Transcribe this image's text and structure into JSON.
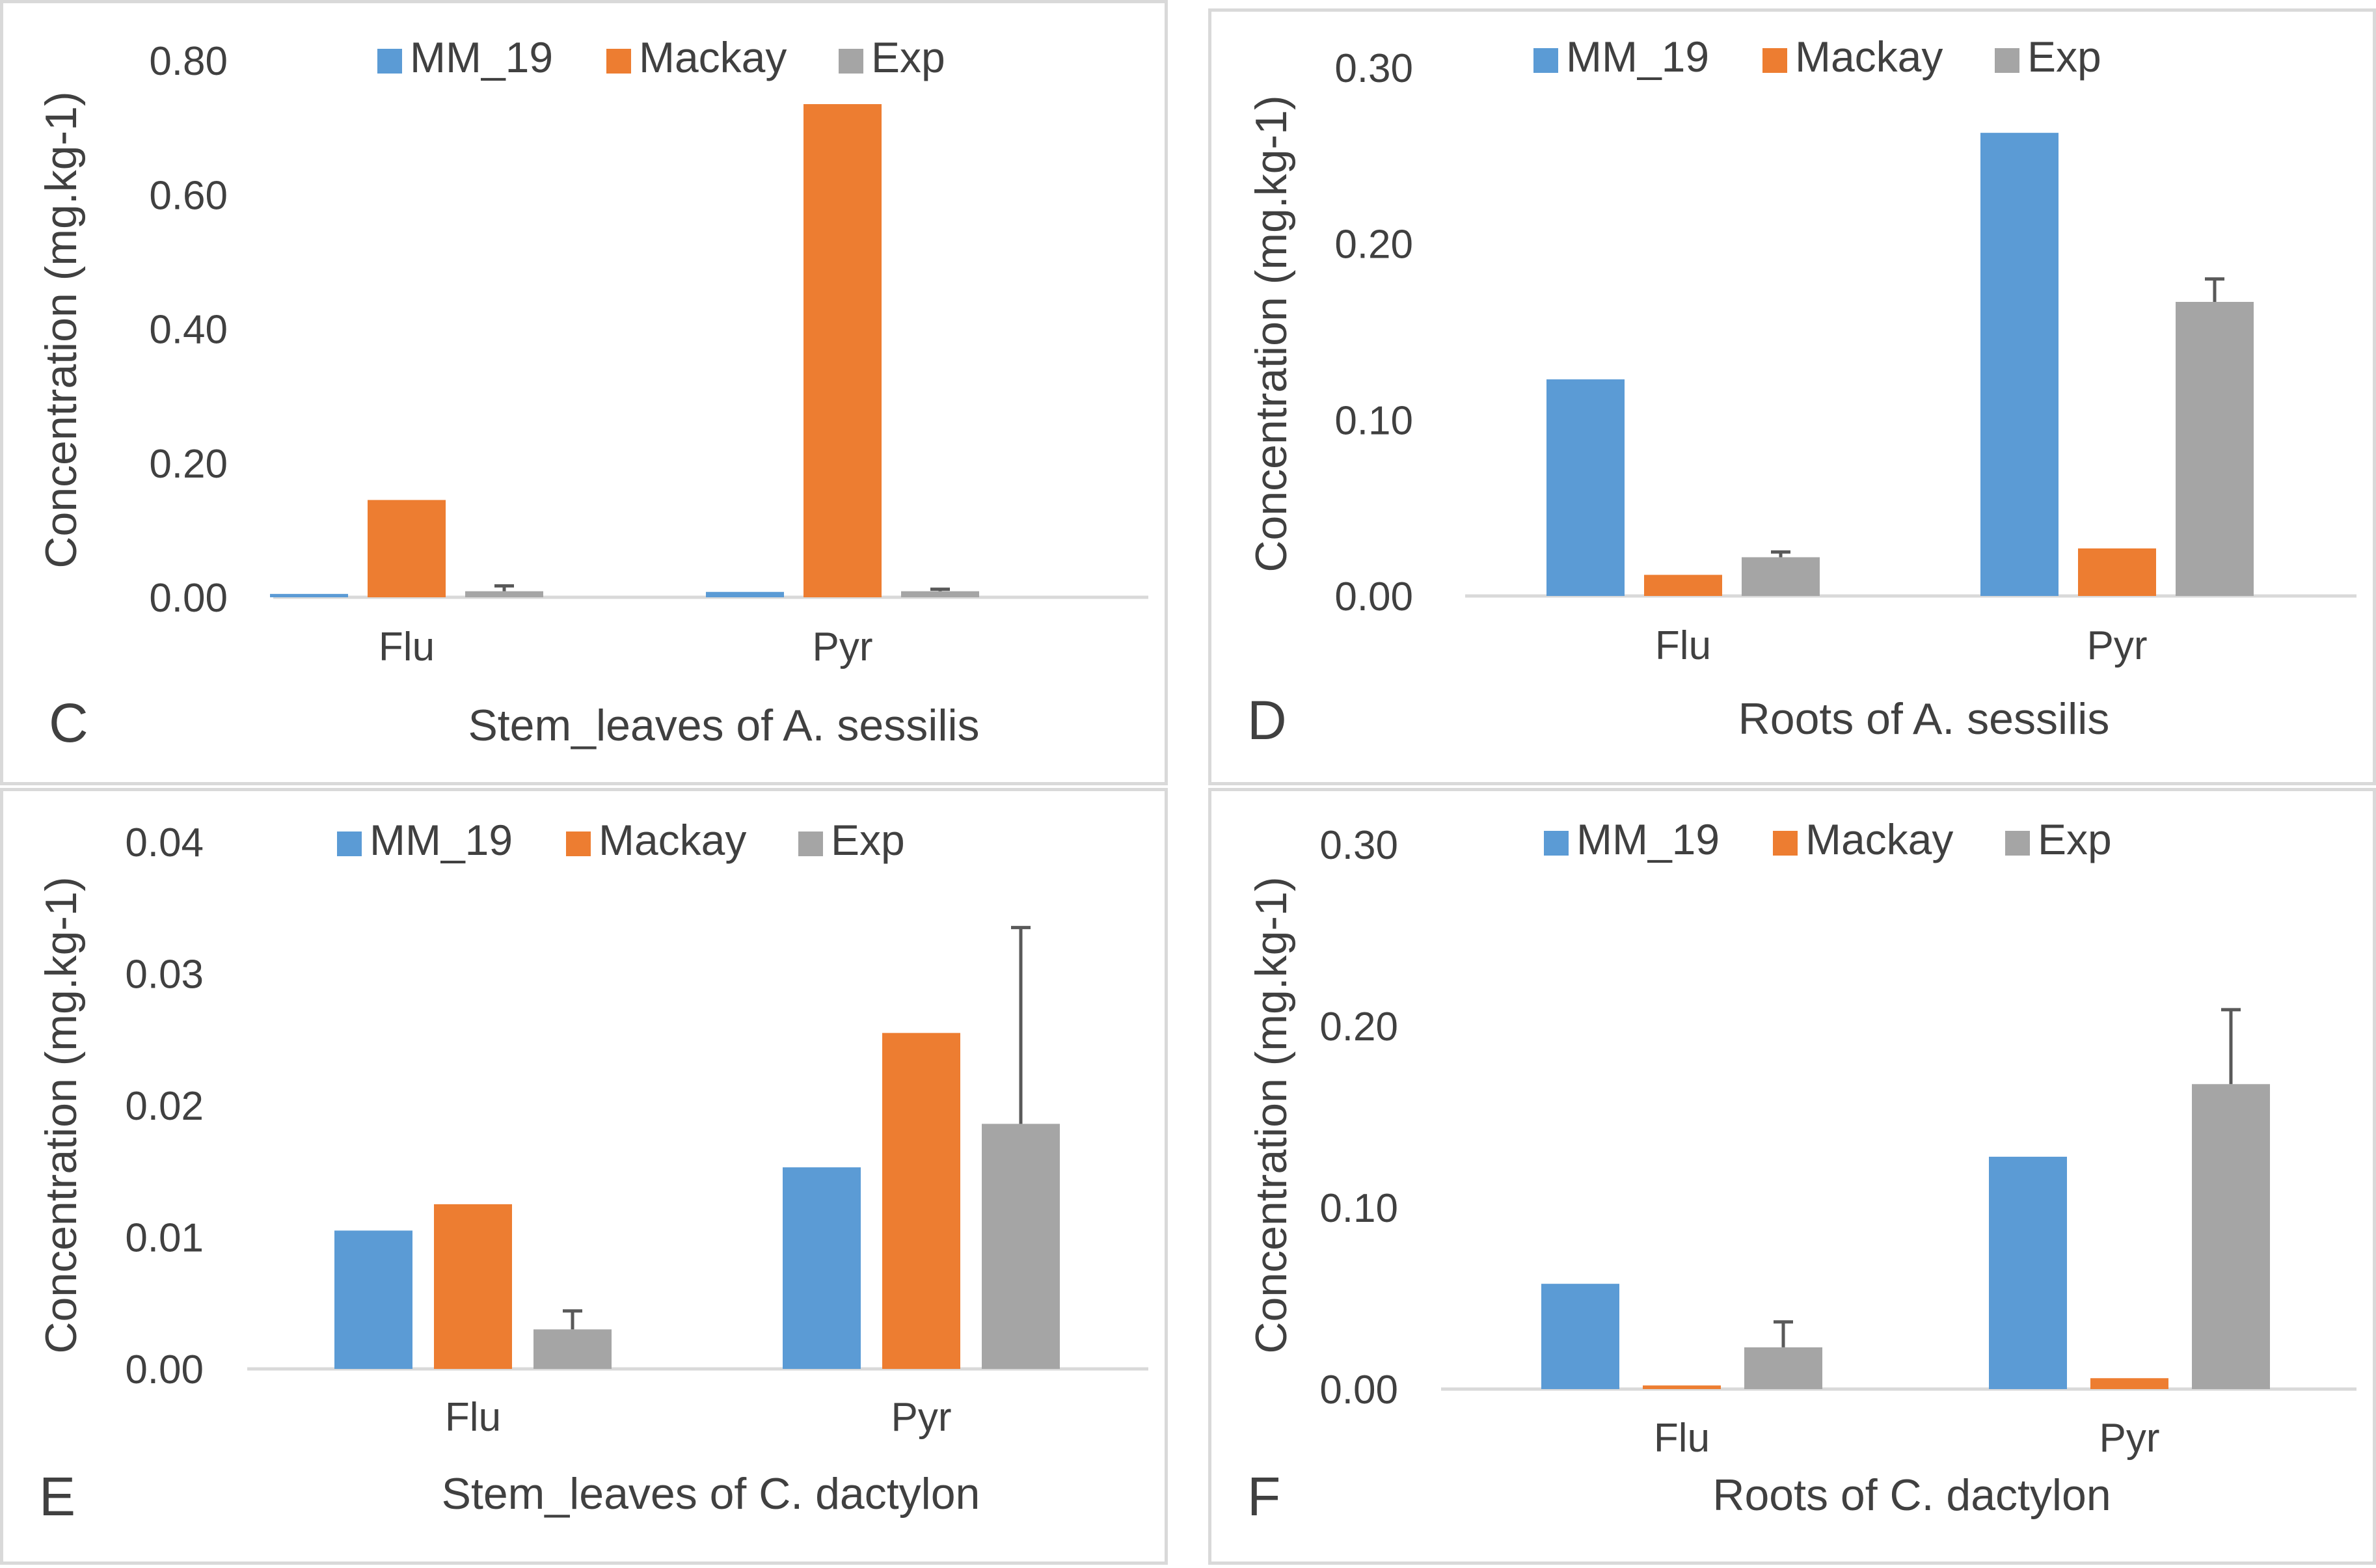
{
  "legend": [
    "MM_19",
    "Mackay",
    "Exp"
  ],
  "colors": {
    "MM_19": "#5b9bd5",
    "Mackay": "#ed7d31",
    "Exp": "#a5a5a5",
    "error_bar": "#595959",
    "text": "#404040",
    "axis": "#d9d9d9"
  },
  "chart_data": [
    {
      "type": "bar",
      "panel_letter": "C",
      "title": "Stem_leaves of A. sessilis",
      "ylabel": "Concentration (mg.kg-1)",
      "categories": [
        "Flu",
        "Pyr"
      ],
      "ylim": [
        0,
        0.8
      ],
      "yticks": [
        0,
        0.2,
        0.4,
        0.6,
        0.8
      ],
      "ytick_labels": [
        "0.00",
        "0.20",
        "0.40",
        "0.60",
        "0.80"
      ],
      "series": [
        {
          "name": "MM_19",
          "values": [
            0.005,
            0.008
          ]
        },
        {
          "name": "Mackay",
          "values": [
            0.145,
            0.735
          ]
        },
        {
          "name": "Exp",
          "values": [
            0.009,
            0.009
          ],
          "errors": [
            0.008,
            0.003
          ]
        }
      ]
    },
    {
      "type": "bar",
      "panel_letter": "D",
      "title": "Roots of A. sessilis",
      "ylabel": "Concentration (mg.kg-1)",
      "categories": [
        "Flu",
        "Pyr"
      ],
      "ylim": [
        0,
        0.3
      ],
      "yticks": [
        0,
        0.1,
        0.2,
        0.3
      ],
      "ytick_labels": [
        "0.00",
        "0.10",
        "0.20",
        "0.30"
      ],
      "series": [
        {
          "name": "MM_19",
          "values": [
            0.123,
            0.263
          ]
        },
        {
          "name": "Mackay",
          "values": [
            0.012,
            0.027
          ]
        },
        {
          "name": "Exp",
          "values": [
            0.022,
            0.167
          ],
          "errors": [
            0.003,
            0.013
          ]
        }
      ]
    },
    {
      "type": "bar",
      "panel_letter": "E",
      "title": "Stem_leaves of C. dactylon",
      "ylabel": "Concentration (mg.kg-1)",
      "categories": [
        "Flu",
        "Pyr"
      ],
      "ylim": [
        0,
        0.04
      ],
      "yticks": [
        0,
        0.01,
        0.02,
        0.03,
        0.04
      ],
      "ytick_labels": [
        "0.00",
        "0.01",
        "0.02",
        "0.03",
        "0.04"
      ],
      "series": [
        {
          "name": "MM_19",
          "values": [
            0.0105,
            0.0153
          ]
        },
        {
          "name": "Mackay",
          "values": [
            0.0125,
            0.0255
          ]
        },
        {
          "name": "Exp",
          "values": [
            0.003,
            0.0186
          ],
          "errors": [
            0.0014,
            0.0149
          ]
        }
      ]
    },
    {
      "type": "bar",
      "panel_letter": "F",
      "title": "Roots of C. dactylon",
      "ylabel": "Concentration (mg.kg-1)",
      "categories": [
        "Flu",
        "Pyr"
      ],
      "ylim": [
        0,
        0.3
      ],
      "yticks": [
        0,
        0.1,
        0.2,
        0.3
      ],
      "ytick_labels": [
        "0.00",
        "0.10",
        "0.20",
        "0.30"
      ],
      "series": [
        {
          "name": "MM_19",
          "values": [
            0.058,
            0.128
          ]
        },
        {
          "name": "Mackay",
          "values": [
            0.002,
            0.006
          ]
        },
        {
          "name": "Exp",
          "values": [
            0.023,
            0.168
          ],
          "errors": [
            0.014,
            0.041
          ]
        }
      ]
    }
  ]
}
